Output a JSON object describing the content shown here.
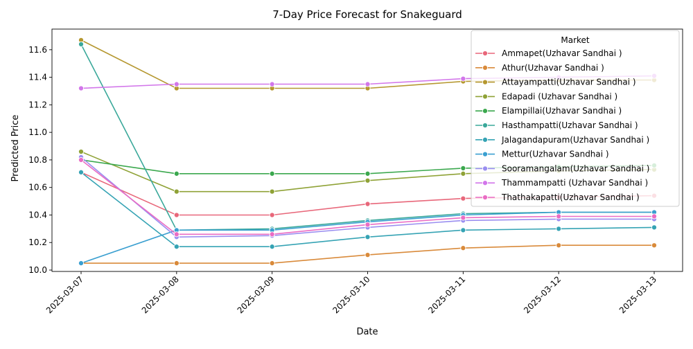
{
  "chart_data": {
    "type": "line",
    "title": "7-Day Price Forecast for Snakeguard",
    "xlabel": "Date",
    "ylabel": "Predicted Price",
    "x": [
      "2025-03-07",
      "2025-03-08",
      "2025-03-09",
      "2025-03-10",
      "2025-03-11",
      "2025-03-12",
      "2025-03-13"
    ],
    "ylim": [
      9.99,
      11.75
    ],
    "yticks": [
      "10.0",
      "10.2",
      "10.4",
      "10.6",
      "10.8",
      "11.0",
      "11.2",
      "11.4",
      "11.6"
    ],
    "grid": false,
    "legend_title": "Market",
    "legend_position": "top-right",
    "series": [
      {
        "name": "Ammapet(Uzhavar Sandhai )",
        "color": "#e8677a",
        "values": [
          10.71,
          10.4,
          10.4,
          10.48,
          10.52,
          10.53,
          10.54
        ]
      },
      {
        "name": "Athur(Uzhavar Sandhai )",
        "color": "#d98a3a",
        "values": [
          10.05,
          10.05,
          10.05,
          10.11,
          10.16,
          10.18,
          10.18
        ]
      },
      {
        "name": "Attayampatti(Uzhavar Sandhai )",
        "color": "#b5972f",
        "values": [
          11.67,
          11.32,
          11.32,
          11.32,
          11.37,
          11.38,
          11.38
        ]
      },
      {
        "name": "Edapadi (Uzhavar Sandhai )",
        "color": "#8fa236",
        "values": [
          10.86,
          10.57,
          10.57,
          10.65,
          10.7,
          10.72,
          10.73
        ]
      },
      {
        "name": "Elampillai(Uzhavar Sandhai )",
        "color": "#3ba84e",
        "values": [
          10.8,
          10.7,
          10.7,
          10.7,
          10.74,
          10.75,
          10.76
        ]
      },
      {
        "name": "Hasthampatti(Uzhavar Sandhai )",
        "color": "#3aa89a",
        "values": [
          11.64,
          10.29,
          10.3,
          10.36,
          10.41,
          10.42,
          10.42
        ]
      },
      {
        "name": "Jalagandapuram(Uzhavar Sandhai )",
        "color": "#35a3b4",
        "values": [
          10.71,
          10.17,
          10.17,
          10.24,
          10.29,
          10.3,
          10.31
        ]
      },
      {
        "name": "Mettur(Uzhavar Sandhai )",
        "color": "#3a9fd0",
        "values": [
          10.05,
          10.29,
          10.29,
          10.35,
          10.4,
          10.42,
          10.42
        ]
      },
      {
        "name": "Sooramangalam(Uzhavar Sandhai )",
        "color": "#9a8ef0",
        "values": [
          10.82,
          10.24,
          10.25,
          10.31,
          10.36,
          10.37,
          10.37
        ]
      },
      {
        "name": "Thammampatti (Uzhavar Sandhai )",
        "color": "#d276ea",
        "values": [
          11.32,
          11.35,
          11.35,
          11.35,
          11.39,
          11.4,
          11.41
        ]
      },
      {
        "name": "Thathakapatti(Uzhavar Sandhai )",
        "color": "#ea6cc4",
        "values": [
          10.8,
          10.26,
          10.26,
          10.33,
          10.38,
          10.39,
          10.39
        ]
      }
    ]
  }
}
